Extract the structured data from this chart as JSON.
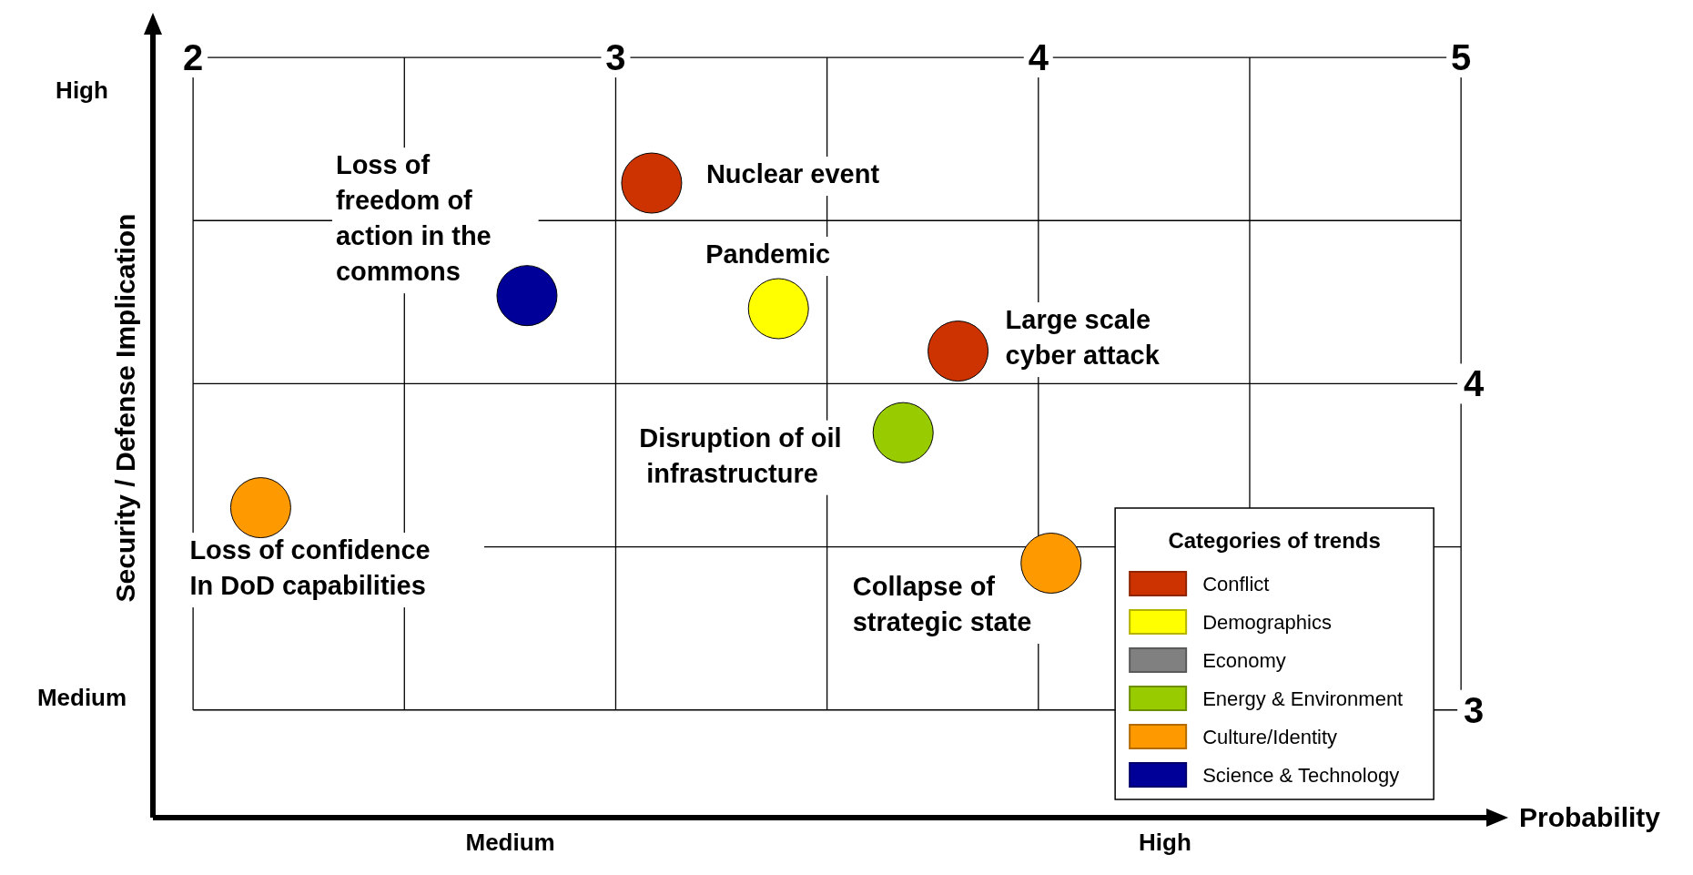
{
  "chart_data": {
    "type": "scatter",
    "xlabel": "Probability",
    "ylabel": "Security / Defense Implication",
    "legend_title": "Categories of trends",
    "xlim": [
      1.905,
      5.06
    ],
    "ylim": [
      2.67,
      5.07
    ],
    "xticks": [
      2,
      {
        "value": 2.5,
        "label": null
      },
      3,
      {
        "value": 3.5,
        "label": null
      },
      4,
      {
        "value": 4.5,
        "label": null
      },
      5
    ],
    "yticks": [
      3,
      {
        "value": 3.5,
        "label": null
      },
      4,
      {
        "value": 4.5,
        "label": null
      },
      {
        "value": 5,
        "label": null
      }
    ],
    "grid": true,
    "legend": "bottom right",
    "marker": "circle",
    "series": [
      {
        "name": "Conflict",
        "color": "#cc3300",
        "x": [
          3.085,
          3.81
        ],
        "values": [
          4.615,
          4.1
        ]
      },
      {
        "name": "Demographics",
        "color": "#ffff00",
        "x": [
          3.385
        ],
        "values": [
          4.23
        ]
      },
      {
        "name": "Economy",
        "color": "#808080"
      },
      {
        "name": "Energy & Environment",
        "color": "#99cc00",
        "x": [
          3.68
        ],
        "values": [
          3.85
        ]
      },
      {
        "name": "Culture/Identity",
        "color": "#ff9900",
        "x": [
          2.16,
          4.03
        ],
        "values": [
          3.62,
          3.45
        ]
      },
      {
        "name": "Science & Technology",
        "color": "#000099",
        "x": [
          2.79
        ],
        "values": [
          4.27
        ]
      }
    ],
    "annotations": [
      {
        "text": "Nuclear event",
        "x": 3.085,
        "y": 4.615
      },
      {
        "text": "Loss of\nfreedom of\naction in the\ncommons",
        "x": 2.79,
        "y": 4.27
      },
      {
        "text": "Pandemic",
        "x": 3.385,
        "y": 4.23
      },
      {
        "text": "Large scale\ncyber attack",
        "x": 3.81,
        "y": 4.1
      },
      {
        "text": "Disruption of oil\n infrastructure",
        "x": 3.68,
        "y": 3.85
      },
      {
        "text": "Loss of confidence\nIn DoD capabilities",
        "x": 2.16,
        "y": 3.62
      },
      {
        "text": "Collapse of\nstrategic state",
        "x": 4.03,
        "y": 3.45
      },
      "Medium",
      "High",
      "Medium",
      "High"
    ]
  }
}
